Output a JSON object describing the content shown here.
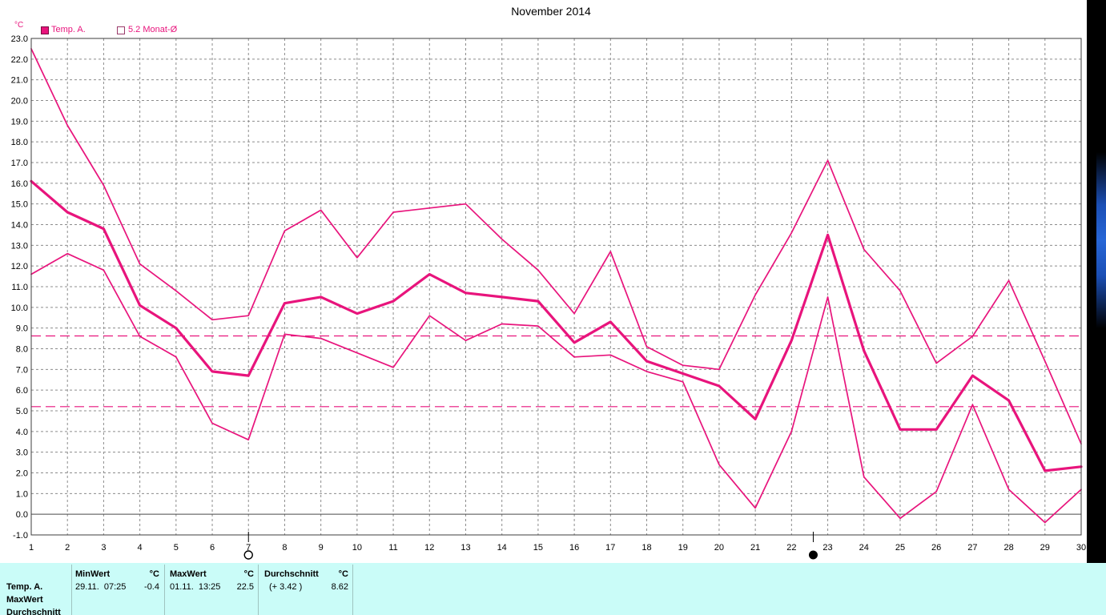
{
  "chart_data": {
    "type": "line",
    "title": "November 2014",
    "ylabel": "°C",
    "x": [
      1,
      2,
      3,
      4,
      5,
      6,
      7,
      8,
      9,
      10,
      11,
      12,
      13,
      14,
      15,
      16,
      17,
      18,
      19,
      20,
      21,
      22,
      23,
      24,
      25,
      26,
      27,
      28,
      29,
      30
    ],
    "ylim": [
      -1.0,
      23.0
    ],
    "y_ticks": [
      "-1.0",
      "0.0",
      "1.0",
      "2.0",
      "3.0",
      "4.0",
      "5.0",
      "6.0",
      "7.0",
      "8.0",
      "9.0",
      "10.0",
      "11.0",
      "12.0",
      "13.0",
      "14.0",
      "15.0",
      "16.0",
      "17.0",
      "18.0",
      "19.0",
      "20.0",
      "21.0",
      "22.0",
      "23.0"
    ],
    "grid": true,
    "legend_placement": "top-left",
    "color": "#e8147c",
    "series": [
      {
        "name": "Temp. A.",
        "max": [
          22.5,
          18.8,
          15.9,
          12.1,
          10.8,
          9.4,
          9.6,
          13.7,
          14.7,
          12.4,
          14.6,
          14.8,
          15.0,
          13.3,
          11.8,
          9.7,
          12.7,
          8.1,
          7.2,
          7.0,
          10.6,
          13.6,
          17.1,
          12.8,
          10.8,
          7.3,
          8.6,
          11.3,
          7.4,
          3.4
        ],
        "mean": [
          16.1,
          14.6,
          13.8,
          10.1,
          9.0,
          6.9,
          6.7,
          10.2,
          10.5,
          9.7,
          10.3,
          11.6,
          10.7,
          10.5,
          10.3,
          8.3,
          9.3,
          7.4,
          6.8,
          6.2,
          4.6,
          8.4,
          13.5,
          7.9,
          4.1,
          4.1,
          6.7,
          5.5,
          2.1,
          2.3
        ],
        "min": [
          11.6,
          12.6,
          11.8,
          8.6,
          7.6,
          4.4,
          3.6,
          8.7,
          8.5,
          7.8,
          7.1,
          9.6,
          8.4,
          9.2,
          9.1,
          7.6,
          7.7,
          6.9,
          6.4,
          2.4,
          0.3,
          4.0,
          10.5,
          1.8,
          -0.2,
          1.1,
          5.3,
          1.2,
          -0.4,
          1.2
        ]
      }
    ],
    "reference_lines": [
      {
        "name": "5.2 Monat-Ø",
        "value": 5.2
      },
      {
        "value": 8.62
      }
    ],
    "moon_phases": [
      {
        "day": 7.0,
        "icon": "full-moon-icon"
      },
      {
        "day": 22.6,
        "icon": "new-moon-icon"
      }
    ]
  },
  "stats": {
    "row_labels": [
      "Temp. A.",
      "MaxWert",
      "Durchschnitt"
    ],
    "columns": [
      {
        "header": "MinWert",
        "unit": "°C",
        "date": "29.11.  07:25",
        "value": "-0.4"
      },
      {
        "header": "MaxWert",
        "unit": "°C",
        "date": "01.11.  13:25",
        "value": "22.5"
      },
      {
        "header": "Durchschnitt",
        "unit": "°C",
        "date": "(+ 3.42 )",
        "value": "8.62"
      }
    ]
  }
}
